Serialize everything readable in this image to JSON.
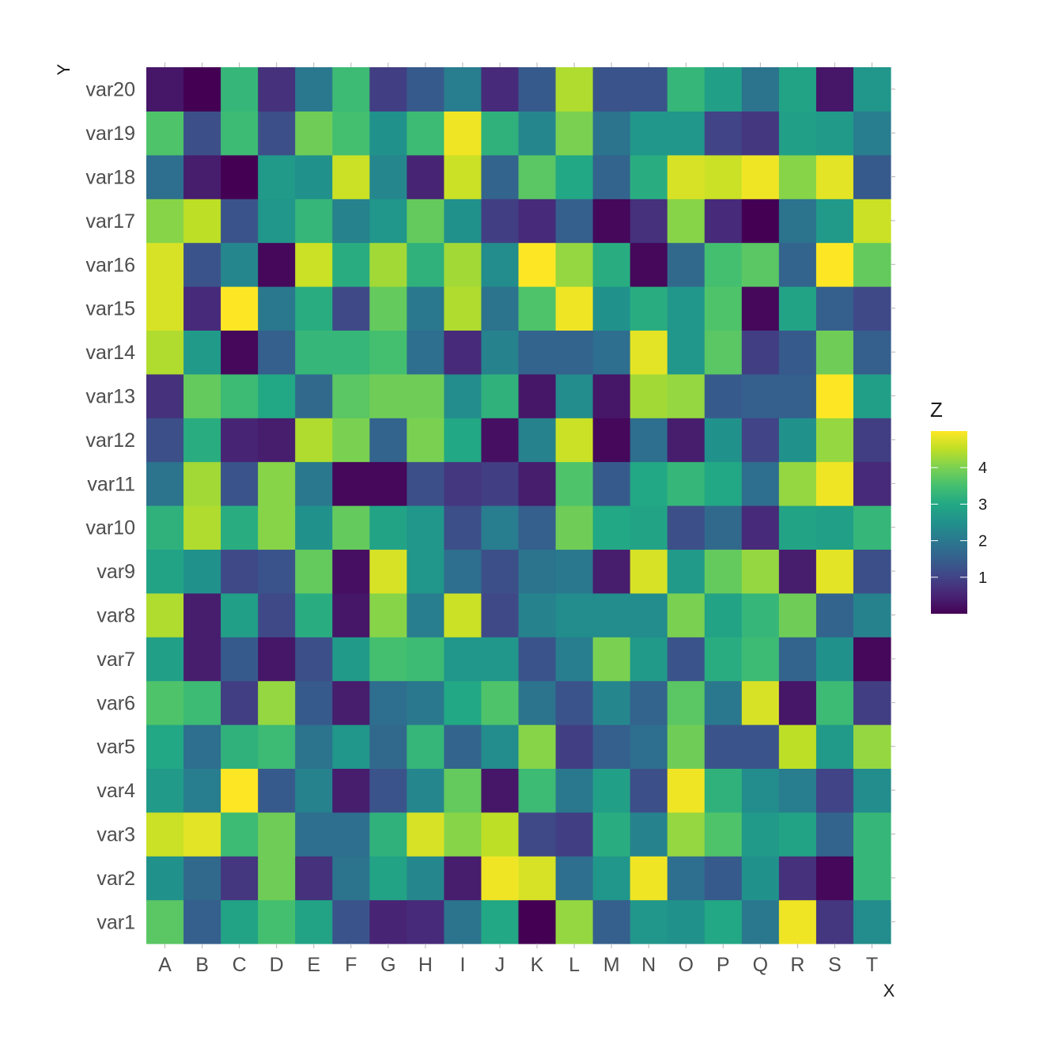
{
  "chart_data": {
    "type": "heatmap",
    "title": "",
    "xlabel": "X",
    "ylabel": "Y",
    "x": [
      "A",
      "B",
      "C",
      "D",
      "E",
      "F",
      "G",
      "H",
      "I",
      "J",
      "K",
      "L",
      "M",
      "N",
      "O",
      "P",
      "Q",
      "R",
      "S",
      "T"
    ],
    "y": [
      "var1",
      "var2",
      "var3",
      "var4",
      "var5",
      "var6",
      "var7",
      "var8",
      "var9",
      "var10",
      "var11",
      "var12",
      "var13",
      "var14",
      "var15",
      "var16",
      "var17",
      "var18",
      "var19",
      "var20"
    ],
    "z": [
      [
        3.7,
        1.5,
        2.9,
        3.5,
        2.9,
        1.3,
        0.5,
        0.6,
        1.9,
        3.0,
        0.0,
        4.2,
        1.5,
        2.6,
        2.5,
        3.0,
        2.0,
        4.9,
        0.8,
        2.4
      ],
      [
        2.5,
        1.7,
        0.8,
        3.9,
        0.7,
        1.9,
        2.9,
        2.3,
        0.4,
        4.9,
        4.7,
        1.8,
        2.6,
        4.9,
        1.8,
        1.4,
        2.5,
        0.7,
        0.1,
        3.3
      ],
      [
        4.6,
        4.8,
        3.4,
        3.9,
        1.8,
        1.8,
        3.2,
        4.7,
        4.1,
        4.5,
        1.1,
        0.9,
        3.1,
        2.2,
        4.2,
        3.6,
        2.7,
        2.9,
        1.6,
        3.3
      ],
      [
        2.7,
        2.1,
        5.0,
        1.4,
        2.2,
        0.4,
        1.3,
        2.3,
        3.8,
        0.3,
        3.4,
        2.0,
        2.8,
        1.2,
        4.9,
        3.2,
        2.4,
        2.1,
        1.0,
        2.4
      ],
      [
        3.0,
        1.8,
        3.2,
        3.4,
        1.9,
        2.6,
        1.7,
        3.3,
        1.6,
        2.4,
        4.1,
        0.9,
        1.5,
        1.8,
        3.9,
        1.3,
        1.3,
        4.5,
        2.7,
        4.2
      ],
      [
        3.6,
        3.4,
        0.9,
        4.2,
        1.4,
        0.4,
        1.8,
        2.0,
        3.0,
        3.6,
        1.9,
        1.3,
        2.3,
        1.6,
        3.7,
        2.0,
        4.7,
        0.3,
        3.4,
        0.9
      ],
      [
        2.8,
        0.4,
        1.4,
        0.3,
        1.2,
        2.7,
        3.5,
        3.4,
        2.6,
        2.6,
        1.3,
        2.1,
        4.0,
        2.7,
        1.3,
        3.1,
        3.4,
        1.6,
        2.5,
        0.1
      ],
      [
        4.4,
        0.4,
        2.8,
        1.1,
        3.1,
        0.3,
        4.1,
        2.1,
        4.6,
        1.1,
        2.2,
        2.4,
        2.4,
        2.4,
        4.0,
        2.9,
        3.3,
        3.9,
        1.6,
        2.2
      ],
      [
        2.9,
        2.5,
        1.1,
        1.3,
        3.8,
        0.2,
        4.7,
        2.6,
        1.8,
        1.2,
        1.9,
        2.0,
        0.4,
        4.7,
        2.7,
        3.8,
        4.2,
        0.4,
        4.8,
        1.2
      ],
      [
        3.2,
        4.4,
        3.1,
        4.1,
        2.5,
        3.8,
        2.9,
        2.6,
        1.2,
        2.1,
        1.5,
        3.9,
        3.0,
        2.9,
        1.2,
        1.7,
        0.6,
        2.9,
        2.8,
        3.3
      ],
      [
        1.9,
        4.3,
        1.3,
        4.1,
        2.0,
        0.1,
        0.1,
        1.2,
        0.8,
        0.9,
        0.4,
        3.6,
        1.4,
        3.0,
        3.3,
        3.0,
        1.8,
        4.2,
        4.9,
        0.6
      ],
      [
        1.2,
        3.1,
        0.5,
        0.4,
        4.4,
        4.0,
        1.6,
        4.0,
        3.0,
        0.2,
        2.2,
        4.6,
        0.1,
        1.8,
        0.4,
        2.5,
        1.0,
        2.5,
        4.2,
        0.9
      ],
      [
        0.7,
        3.8,
        3.4,
        3.0,
        1.7,
        3.7,
        3.9,
        3.9,
        2.4,
        3.2,
        0.3,
        2.4,
        0.3,
        4.3,
        4.2,
        1.4,
        1.5,
        1.5,
        5.0,
        2.8
      ],
      [
        4.4,
        2.7,
        0.1,
        1.5,
        3.3,
        3.3,
        3.5,
        1.8,
        0.6,
        2.2,
        1.6,
        1.6,
        1.8,
        4.8,
        2.6,
        3.7,
        0.9,
        1.4,
        3.9,
        1.5
      ],
      [
        4.7,
        0.6,
        5.0,
        2.0,
        3.1,
        1.1,
        3.8,
        2.0,
        4.4,
        1.9,
        3.6,
        4.9,
        2.5,
        3.1,
        2.6,
        3.6,
        0.1,
        2.9,
        1.5,
        1.1
      ],
      [
        4.7,
        1.3,
        2.3,
        0.1,
        4.6,
        3.1,
        4.3,
        3.2,
        4.3,
        2.4,
        5.0,
        4.2,
        3.1,
        0.1,
        1.7,
        3.5,
        3.7,
        1.6,
        5.0,
        3.8
      ],
      [
        4.1,
        4.5,
        1.3,
        2.6,
        3.3,
        2.2,
        2.6,
        3.8,
        2.5,
        0.9,
        0.6,
        1.5,
        0.1,
        0.7,
        4.1,
        0.6,
        0.0,
        1.9,
        2.7,
        4.6
      ],
      [
        1.8,
        0.4,
        0.0,
        2.7,
        2.5,
        4.6,
        2.3,
        0.5,
        4.6,
        1.6,
        3.7,
        3.0,
        1.6,
        3.1,
        4.7,
        4.6,
        4.9,
        4.1,
        4.8,
        1.4
      ],
      [
        3.6,
        1.2,
        3.4,
        1.2,
        3.9,
        3.5,
        2.5,
        3.4,
        4.9,
        3.2,
        2.3,
        4.0,
        1.9,
        2.6,
        2.6,
        1.0,
        0.8,
        2.8,
        2.7,
        2.1
      ],
      [
        0.3,
        0.0,
        3.3,
        0.7,
        2.0,
        3.4,
        0.9,
        1.4,
        2.1,
        0.6,
        1.4,
        4.4,
        1.3,
        1.3,
        3.3,
        2.8,
        1.9,
        2.9,
        0.3,
        2.6
      ]
    ],
    "zlim": [
      0,
      5
    ],
    "colorscale": "viridis",
    "legend": {
      "title": "Z",
      "ticks": [
        "1",
        "2",
        "3",
        "4"
      ],
      "tick_values": [
        1,
        2,
        3,
        4
      ],
      "placement": "right"
    },
    "grid": false
  }
}
